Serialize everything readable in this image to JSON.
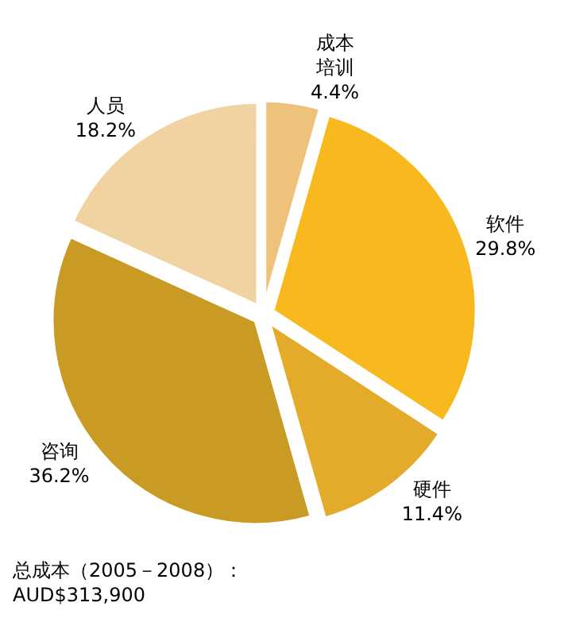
{
  "chart_data": {
    "type": "pie",
    "categories": [
      "成本培训",
      "软件",
      "硬件",
      "咨询",
      "人员"
    ],
    "values": [
      4.4,
      29.8,
      11.4,
      36.2,
      18.2
    ],
    "value_labels": [
      "4.4%",
      "29.8%",
      "11.4%",
      "36.2%",
      "18.2%"
    ],
    "colors": [
      "#eec27a",
      "#f7b91e",
      "#e4ab2a",
      "#c99a24",
      "#f1d3a2"
    ],
    "annotations": [
      "总成本（2005－2008）：\nAUD$313,900"
    ],
    "legend": false
  }
}
